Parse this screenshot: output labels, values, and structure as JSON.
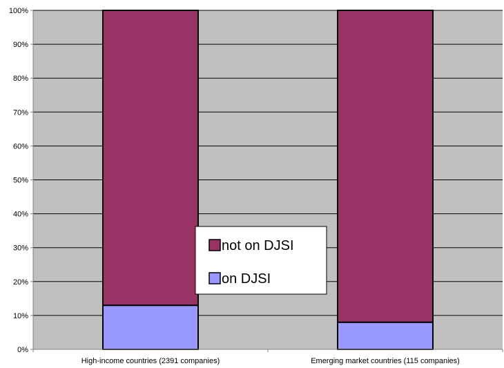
{
  "chart_data": {
    "type": "bar",
    "stacked": true,
    "percent_stacked": true,
    "categories": [
      "High-income countries (2391 companies)",
      "Emerging market countries (115 companies)"
    ],
    "series": [
      {
        "name": "on DJSI",
        "values": [
          13,
          8
        ],
        "color": "#9999FF"
      },
      {
        "name": "not on DJSI",
        "values": [
          87,
          92
        ],
        "color": "#993366"
      }
    ],
    "y_ticks": [
      "0%",
      "10%",
      "20%",
      "30%",
      "40%",
      "50%",
      "60%",
      "70%",
      "80%",
      "90%",
      "100%"
    ],
    "ylim": [
      0,
      100
    ],
    "grid": true,
    "legend": {
      "placement": "center",
      "items": [
        "not on DJSI",
        "on DJSI"
      ]
    },
    "plot_background": "#C0C0C0",
    "title": "",
    "xlabel": "",
    "ylabel": ""
  }
}
